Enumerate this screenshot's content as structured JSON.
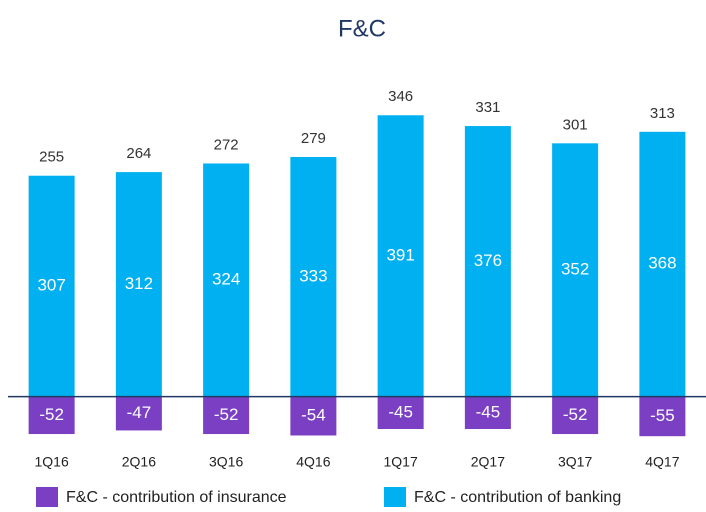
{
  "chart_data": {
    "type": "stacked_bar",
    "title": "F&C",
    "categories": [
      "1Q16",
      "2Q16",
      "3Q16",
      "4Q16",
      "1Q17",
      "2Q17",
      "3Q17",
      "4Q17"
    ],
    "series": [
      {
        "name": "F&C - contribution of insurance",
        "color": "#7b3fc4",
        "values": [
          -52,
          -47,
          -52,
          -54,
          -45,
          -45,
          -52,
          -55
        ]
      },
      {
        "name": "F&C - contribution of banking",
        "color": "#00b0f0",
        "values": [
          307,
          312,
          324,
          333,
          391,
          376,
          352,
          368
        ]
      }
    ],
    "totals": [
      255,
      264,
      272,
      279,
      346,
      331,
      301,
      313
    ],
    "ylim": [
      -70,
      440
    ]
  }
}
